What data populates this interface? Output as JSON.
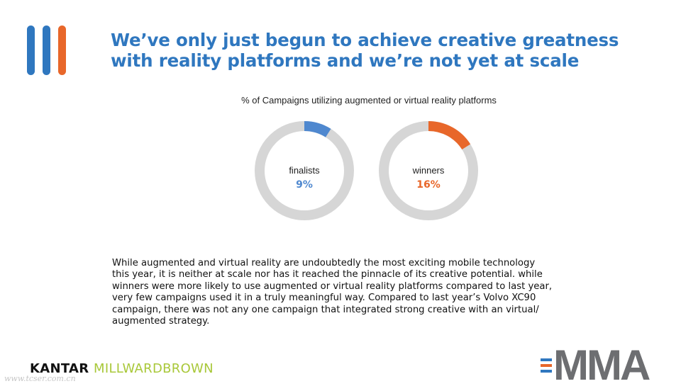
{
  "colors": {
    "blue": "#2f77bf",
    "orange": "#e8672a",
    "ring_gray": "#d6d6d6",
    "donut_blue": "#4f88cf",
    "text_dark": "#111111",
    "kantar_green": "#a9c83a",
    "mma_gray": "#6d6e71"
  },
  "header": {
    "title_lines": [
      "We’ve only just begun to achieve creative greatness",
      "with reality platforms and we’re not yet at scale"
    ]
  },
  "chart_data": {
    "type": "pie",
    "title": "% of Campaigns utilizing augmented or virtual reality platforms",
    "series": [
      {
        "name": "finalists",
        "value": 9,
        "label": "9%",
        "color": "#4f88cf"
      },
      {
        "name": "winners",
        "value": 16,
        "label": "16%",
        "color": "#e8672a"
      }
    ],
    "max": 100
  },
  "body": {
    "lines": [
      "While augmented and virtual reality are undoubtedly the most exciting mobile technology",
      "this year, it is neither at scale nor has it reached the pinnacle of its creative potential. while",
      "winners were more likely to use augmented or virtual reality platforms compared to last year,",
      "very few campaigns used it in a truly meaningful way. Compared to last year’s Volvo XC90",
      "campaign, there was not any one campaign that integrated strong creative with an virtual/",
      "augmented strategy."
    ]
  },
  "footer": {
    "kantar_first": "KANTAR",
    "kantar_second": "MILLWARDBROWN",
    "watermark": "www.tcser.com.cn",
    "mma_text": "MMA"
  }
}
